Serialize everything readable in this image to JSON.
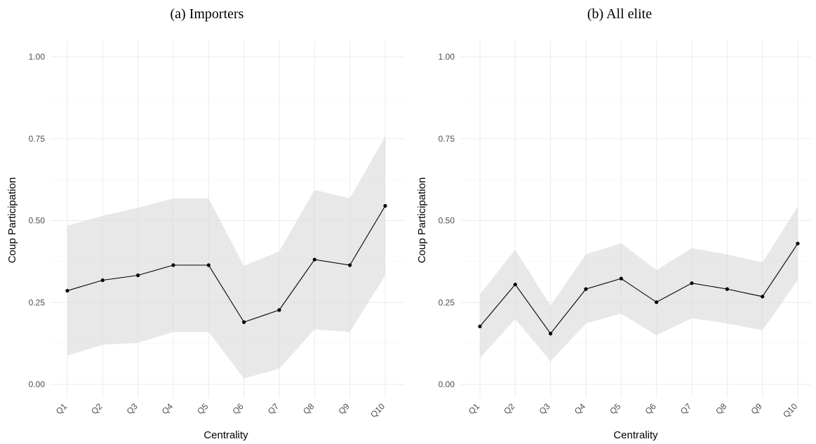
{
  "chart_data": [
    {
      "type": "line",
      "title": "(a) Importers",
      "xlabel": "Centrality",
      "ylabel": "Coup Participation",
      "categories": [
        "Q1",
        "Q2",
        "Q3",
        "Q4",
        "Q5",
        "Q6",
        "Q7",
        "Q8",
        "Q9",
        "Q10"
      ],
      "ylim": [
        0,
        1
      ],
      "yticks": [
        "0.00",
        "0.25",
        "0.50",
        "0.75",
        "1.00"
      ],
      "grid": true,
      "series": [
        {
          "values": [
            0.286,
            0.318,
            0.333,
            0.364,
            0.364,
            0.19,
            0.227,
            0.381,
            0.364,
            0.545
          ],
          "lower": [
            0.088,
            0.121,
            0.127,
            0.16,
            0.16,
            0.018,
            0.048,
            0.168,
            0.16,
            0.333
          ],
          "upper": [
            0.484,
            0.515,
            0.539,
            0.568,
            0.568,
            0.362,
            0.406,
            0.594,
            0.568,
            0.757
          ]
        }
      ]
    },
    {
      "type": "line",
      "title": "(b) All elite",
      "xlabel": "Centrality",
      "ylabel": "Coup Participation",
      "categories": [
        "Q1",
        "Q2",
        "Q3",
        "Q4",
        "Q5",
        "Q6",
        "Q7",
        "Q8",
        "Q9",
        "Q10"
      ],
      "ylim": [
        0,
        1
      ],
      "yticks": [
        "0.00",
        "0.25",
        "0.50",
        "0.75",
        "1.00"
      ],
      "grid": true,
      "series": [
        {
          "values": [
            0.177,
            0.305,
            0.155,
            0.291,
            0.323,
            0.251,
            0.309,
            0.291,
            0.268,
            0.43
          ],
          "lower": [
            0.08,
            0.2,
            0.07,
            0.186,
            0.216,
            0.15,
            0.202,
            0.186,
            0.165,
            0.318
          ],
          "upper": [
            0.275,
            0.411,
            0.24,
            0.397,
            0.431,
            0.349,
            0.416,
            0.397,
            0.372,
            0.543
          ]
        }
      ]
    }
  ]
}
